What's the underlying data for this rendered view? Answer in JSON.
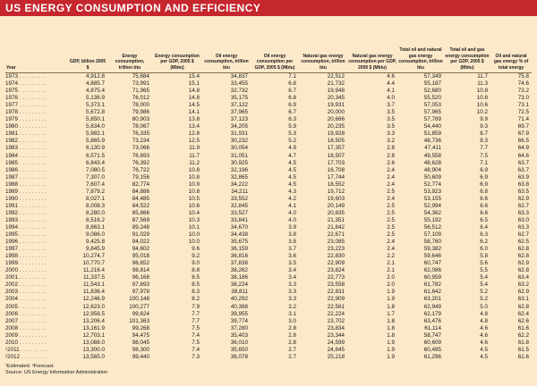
{
  "title": "US ENERGY CONSUMPTION AND EFFICIENCY",
  "headers": [
    "Year",
    "GDP, billion 2005 $",
    "Energy consumption, trillion btu",
    "Energy consumption per GDP, 2005 $ (Mbtu)",
    "Oil energy consumption, trillion btu",
    "Oil energy consumption per GDP, 2005 $ (Mbtu)",
    "Natural gas energy consumption, trillion btu",
    "Natural gas energy consumption per GDP, 2005 $ (Mbtu)",
    "Total oil and natural gas energy consumption, trillion btu",
    "Total oil and gas energy consumption per GDP, 2005 $ (Mbtu)",
    "Oil and natural gas energy % of total energy"
  ],
  "rows": [
    [
      "1973",
      "4,912.8",
      "75,684",
      "15.4",
      "34,837",
      "7.1",
      "22,512",
      "4.6",
      "57,349",
      "11.7",
      "75.8"
    ],
    [
      "1974",
      "4,885.7",
      "73,991",
      "15.1",
      "33,455",
      "6.8",
      "21,732",
      "4.4",
      "55,187",
      "11.3",
      "74.6"
    ],
    [
      "1975",
      "4,875.4",
      "71,965",
      "14.8",
      "32,732",
      "6.7",
      "19,948",
      "4.1",
      "52,680",
      "10.8",
      "73.2"
    ],
    [
      "1976",
      "5,136.9",
      "76,012",
      "14.8",
      "35,175",
      "6.8",
      "20,345",
      "4.0",
      "55,520",
      "10.8",
      "73.0"
    ],
    [
      "1977",
      "5,373.1",
      "78,000",
      "14.5",
      "37,122",
      "6.9",
      "19,931",
      "3.7",
      "57,053",
      "10.6",
      "73.1"
    ],
    [
      "1978",
      "5,672.8",
      "79,986",
      "14.1",
      "37,965",
      "6.7",
      "20,000",
      "3.5",
      "57,965",
      "10.2",
      "72.5"
    ],
    [
      "1979",
      "5,850.1",
      "80,903",
      "13.8",
      "37,123",
      "6.3",
      "20,666",
      "3.5",
      "57,789",
      "9.9",
      "71.4"
    ],
    [
      "1980",
      "5,834.0",
      "78,067",
      "13.4",
      "34,205",
      "5.9",
      "20,235",
      "3.5",
      "54,440",
      "9.3",
      "69.7"
    ],
    [
      "1981",
      "5,982.1",
      "76,335",
      "12.8",
      "31,931",
      "5.3",
      "19,928",
      "3.3",
      "51,859",
      "8.7",
      "67.9"
    ],
    [
      "1982",
      "5,865.9",
      "73,234",
      "12.5",
      "30,232",
      "5.2",
      "18,505",
      "3.2",
      "48,736",
      "8.3",
      "66.5"
    ],
    [
      "1983",
      "6,130.9",
      "73,066",
      "11.9",
      "30,054",
      "4.9",
      "17,357",
      "2.8",
      "47,411",
      "7.7",
      "64.9"
    ],
    [
      "1984",
      "6,571.5",
      "76,693",
      "11.7",
      "31,051",
      "4.7",
      "18,507",
      "2.8",
      "49,558",
      "7.5",
      "64.6"
    ],
    [
      "1985",
      "6,843.4",
      "76,392",
      "11.2",
      "30,925",
      "4.5",
      "17,703",
      "2.6",
      "48,628",
      "7.1",
      "63.7"
    ],
    [
      "1986",
      "7,080.5",
      "76,722",
      "10.8",
      "32,196",
      "4.5",
      "16,708",
      "2.4",
      "48,904",
      "6.9",
      "63.7"
    ],
    [
      "1987",
      "7,307.0",
      "79,156",
      "10.8",
      "32,865",
      "4.5",
      "17,744",
      "2.4",
      "50,609",
      "6.9",
      "63.9"
    ],
    [
      "1988",
      "7,607.4",
      "82,774",
      "10.9",
      "34,222",
      "4.5",
      "18,552",
      "2.4",
      "52,774",
      "6.9",
      "63.8"
    ],
    [
      "1989",
      "7,879.2",
      "84,886",
      "10.8",
      "34,211",
      "4.3",
      "19,712",
      "2.5",
      "53,923",
      "6.8",
      "63.5"
    ],
    [
      "1990",
      "8,027.1",
      "84,485",
      "10.5",
      "33,552",
      "4.2",
      "19,603",
      "2.4",
      "53,155",
      "6.6",
      "62.9"
    ],
    [
      "1991",
      "8,008.3",
      "84,522",
      "10.6",
      "32,845",
      "4.1",
      "20,149",
      "2.5",
      "52,994",
      "6.6",
      "62.7"
    ],
    [
      "1992",
      "8,280.0",
      "85,866",
      "10.4",
      "33,527",
      "4.0",
      "20,835",
      "2.5",
      "54,362",
      "6.6",
      "63.3"
    ],
    [
      "1993",
      "8,516.2",
      "87,569",
      "10.3",
      "33,841",
      "4.0",
      "21,351",
      "2.5",
      "55,192",
      "6.5",
      "63.0"
    ],
    [
      "1994",
      "8,863.1",
      "89,248",
      "10.1",
      "34,670",
      "3.9",
      "21,842",
      "2.5",
      "56,512",
      "6.4",
      "63.3"
    ],
    [
      "1995",
      "9,086.0",
      "91,029",
      "10.0",
      "34,438",
      "3.8",
      "22,671",
      "2.5",
      "57,109",
      "6.3",
      "62.7"
    ],
    [
      "1996",
      "9,425.8",
      "94,022",
      "10.0",
      "35,675",
      "3.8",
      "23,085",
      "2.4",
      "58,760",
      "6.2",
      "62.5"
    ],
    [
      "1997",
      "9,845.9",
      "94,602",
      "9.6",
      "36,159",
      "3.7",
      "23,223",
      "2.4",
      "59,382",
      "6.0",
      "62.8"
    ],
    [
      "1998",
      "10,274.7",
      "95,018",
      "9.2",
      "36,816",
      "3.6",
      "22,830",
      "2.2",
      "59,646",
      "5.8",
      "62.8"
    ],
    [
      "1999",
      "10,770.7",
      "96,652",
      "9.0",
      "37,838",
      "3.5",
      "22,909",
      "2.1",
      "60,747",
      "5.6",
      "62.9"
    ],
    [
      "2000",
      "11,216.4",
      "98,814",
      "8.8",
      "38,262",
      "3.4",
      "23,824",
      "2.1",
      "62,086",
      "5.5",
      "62.8"
    ],
    [
      "2001",
      "11,337.5",
      "96,168",
      "8.5",
      "38,186",
      "3.4",
      "22,773",
      "2.0",
      "60,959",
      "5.4",
      "63.4"
    ],
    [
      "2002",
      "11,543.1",
      "97,693",
      "8.5",
      "38,224",
      "3.3",
      "23,558",
      "2.0",
      "61,782",
      "5.4",
      "63.2"
    ],
    [
      "2003",
      "11,836.4",
      "97,978",
      "8.3",
      "38,811",
      "3.3",
      "22,831",
      "1.9",
      "61,642",
      "5.2",
      "62.9"
    ],
    [
      "2004",
      "12,246.9",
      "100,148",
      "8.2",
      "40,292",
      "3.3",
      "22,909",
      "1.9",
      "63,201",
      "5.2",
      "63.1"
    ],
    [
      "2005",
      "12,623.0",
      "100,277",
      "7.9",
      "40,388",
      "3.2",
      "22,561",
      "1.8",
      "62,949",
      "5.0",
      "62.8"
    ],
    [
      "2006",
      "12,958.5",
      "99,624",
      "7.7",
      "39,955",
      "3.1",
      "22,224",
      "1.7",
      "62,179",
      "4.8",
      "62.4"
    ],
    [
      "2007",
      "13,206.4",
      "101,363",
      "7.7",
      "39,774",
      "3.0",
      "23,702",
      "1.8",
      "63,476",
      "4.8",
      "62.6"
    ],
    [
      "2008",
      "13,161.9",
      "99,268",
      "7.5",
      "37,280",
      "2.8",
      "23,834",
      "1.8",
      "61,114",
      "4.6",
      "61.6"
    ],
    [
      "2009",
      "12,703.1",
      "94,475",
      "7.4",
      "35,403",
      "2.8",
      "23,344",
      "1.8",
      "58,747",
      "4.6",
      "62.2"
    ],
    [
      "2010",
      "13,088.0",
      "98,045",
      "7.5",
      "36,010",
      "2.8",
      "24,599",
      "1.9",
      "60,609",
      "4.6",
      "61.8"
    ],
    [
      "2011",
      "13,300.0",
      "98,300",
      "7.4",
      "35,650",
      "2.7",
      "24,845",
      "1.9",
      "60,495",
      "4.5",
      "61.5"
    ],
    [
      "2012",
      "13,565.0",
      "99,440",
      "7.3",
      "36,078",
      "2.7",
      "25,218",
      "1.9",
      "61,296",
      "4.5",
      "61.6"
    ]
  ],
  "row_marks": {
    "2011": "¹",
    "2012": "²"
  },
  "footnotes": [
    "¹Estimated. ²Forecast.",
    "Source: US Energy Information Administration"
  ]
}
